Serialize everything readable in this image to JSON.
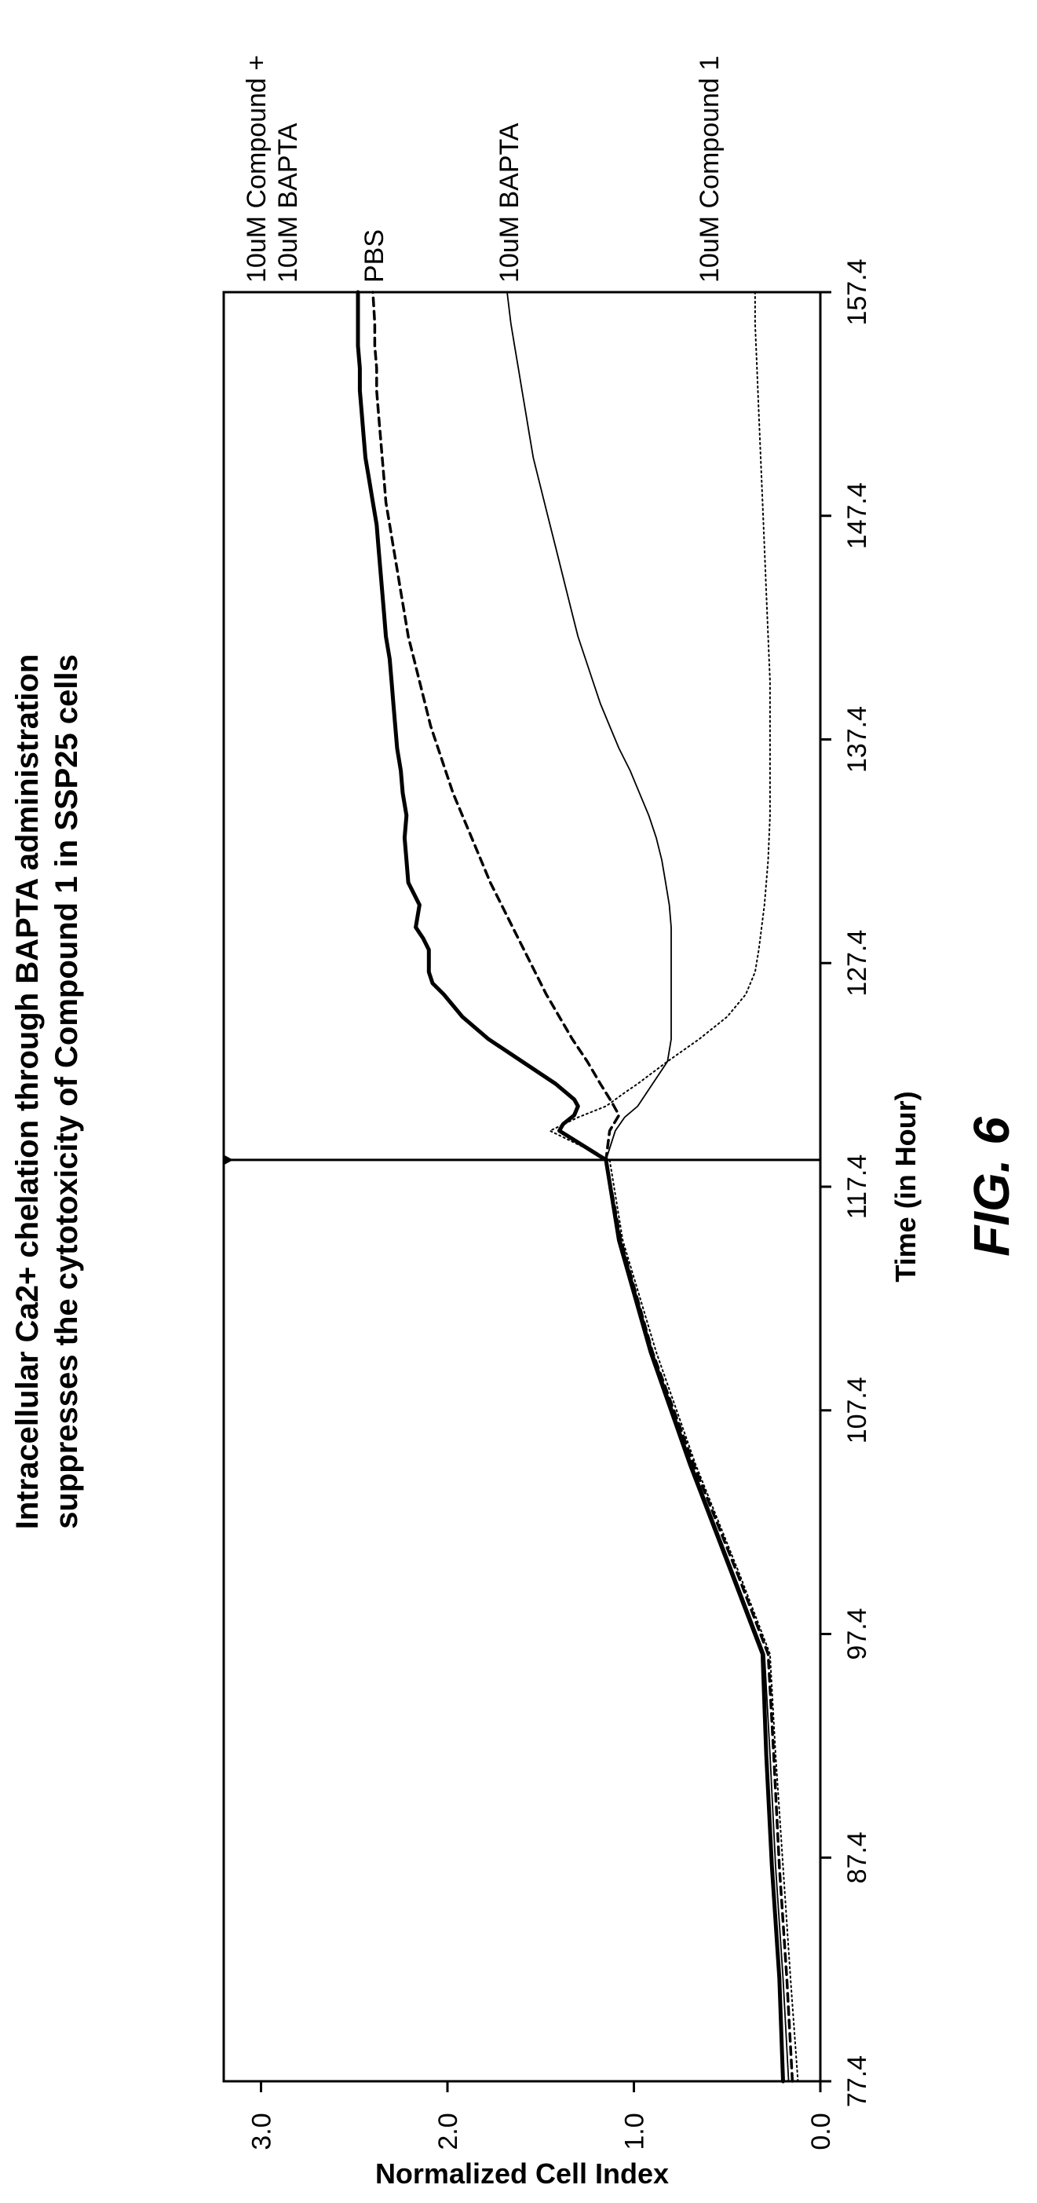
{
  "chart_data": {
    "type": "line",
    "title_lines": [
      "Intracellular Ca2+ chelation through BAPTA administration",
      "suppresses the cytotoxicity of Compound 1 in SSP25 cells"
    ],
    "xlabel": "Time (in Hour)",
    "ylabel": "Normalized Cell Index",
    "figure_label": "FIG.  6",
    "xlim": [
      77.4,
      157.4
    ],
    "ylim": [
      0.0,
      3.2
    ],
    "x_ticks": [
      "77.4",
      "87.4",
      "97.4",
      "107.4",
      "117.4",
      "127.4",
      "137.4",
      "147.4",
      "157.4"
    ],
    "y_ticks": [
      "0.0",
      "1.0",
      "2.0",
      "3.0"
    ],
    "marker_time": 118.6,
    "grid": false,
    "series": [
      {
        "name": "10uM Compound +\n10uM BAPTA",
        "style": "solid-thick",
        "color": "#000000",
        "x": [
          77.4,
          82,
          87,
          92,
          96.5,
          100,
          105,
          110,
          115,
          118.6,
          119.9,
          120.2,
          120.6,
          121,
          121.3,
          122,
          123,
          124,
          125,
          126,
          126.5,
          127,
          128,
          128.5,
          129,
          130,
          131,
          132,
          133,
          134,
          135,
          136,
          137,
          138,
          139,
          140,
          141,
          142,
          143,
          144,
          145,
          146,
          147,
          148,
          149,
          150,
          151,
          152,
          153,
          154,
          155,
          156,
          157.4
        ],
        "y": [
          0.2,
          0.22,
          0.26,
          0.29,
          0.31,
          0.47,
          0.7,
          0.91,
          1.08,
          1.15,
          1.4,
          1.38,
          1.32,
          1.3,
          1.32,
          1.42,
          1.6,
          1.78,
          1.92,
          2.02,
          2.08,
          2.1,
          2.1,
          2.13,
          2.17,
          2.15,
          2.21,
          2.22,
          2.23,
          2.22,
          2.24,
          2.25,
          2.27,
          2.28,
          2.29,
          2.3,
          2.31,
          2.33,
          2.34,
          2.35,
          2.36,
          2.37,
          2.38,
          2.4,
          2.42,
          2.44,
          2.45,
          2.46,
          2.47,
          2.47,
          2.48,
          2.48,
          2.48
        ]
      },
      {
        "name": "PBS",
        "style": "dashed",
        "color": "#000000",
        "x": [
          77.4,
          82,
          87,
          92,
          96.5,
          100,
          105,
          110,
          115,
          118.6,
          119.9,
          120.6,
          121.2,
          122,
          123,
          124,
          125,
          126,
          127,
          128,
          129,
          130,
          131,
          132,
          133,
          134,
          135,
          136,
          137,
          138,
          139,
          140,
          141,
          142,
          143,
          144,
          145,
          146,
          147,
          148,
          149,
          150,
          151,
          152,
          153,
          154,
          155,
          156,
          157.4
        ],
        "y": [
          0.15,
          0.18,
          0.22,
          0.25,
          0.28,
          0.44,
          0.68,
          0.9,
          1.07,
          1.15,
          1.13,
          1.08,
          1.12,
          1.18,
          1.25,
          1.33,
          1.4,
          1.47,
          1.53,
          1.59,
          1.65,
          1.71,
          1.77,
          1.82,
          1.87,
          1.92,
          1.97,
          2.01,
          2.05,
          2.09,
          2.12,
          2.15,
          2.18,
          2.21,
          2.23,
          2.25,
          2.27,
          2.29,
          2.31,
          2.33,
          2.34,
          2.35,
          2.36,
          2.37,
          2.38,
          2.38,
          2.39,
          2.39,
          2.4
        ]
      },
      {
        "name": "10uM BAPTA",
        "style": "solid-thin",
        "color": "#000000",
        "x": [
          77.4,
          82,
          87,
          92,
          96.5,
          100,
          105,
          110,
          115,
          118.6,
          119.9,
          120.5,
          121,
          122,
          123,
          124,
          125,
          126,
          127,
          128,
          129,
          130,
          131,
          132,
          133,
          134,
          135,
          136,
          137,
          138,
          139,
          140,
          141,
          142,
          143,
          144,
          145,
          146,
          147,
          148,
          149,
          150,
          151,
          152,
          153,
          154,
          155,
          156,
          157.4
        ],
        "y": [
          0.17,
          0.2,
          0.24,
          0.27,
          0.3,
          0.46,
          0.69,
          0.9,
          1.07,
          1.15,
          1.1,
          1.05,
          0.98,
          0.9,
          0.82,
          0.8,
          0.8,
          0.8,
          0.8,
          0.8,
          0.8,
          0.81,
          0.83,
          0.85,
          0.88,
          0.92,
          0.97,
          1.02,
          1.08,
          1.13,
          1.18,
          1.22,
          1.26,
          1.3,
          1.33,
          1.36,
          1.39,
          1.42,
          1.45,
          1.48,
          1.51,
          1.54,
          1.56,
          1.58,
          1.6,
          1.62,
          1.64,
          1.66,
          1.68
        ]
      },
      {
        "name": "10uM Compound 1",
        "style": "dotted",
        "color": "#000000",
        "x": [
          77.4,
          82,
          87,
          92,
          96.5,
          100,
          105,
          110,
          115,
          118.6,
          119.9,
          120.5,
          121,
          121.6,
          122,
          123,
          124,
          125,
          126,
          127,
          128,
          130,
          132,
          134,
          136,
          138,
          140,
          142,
          144,
          146,
          148,
          150,
          152,
          154,
          156,
          157.4
        ],
        "y": [
          0.12,
          0.16,
          0.2,
          0.24,
          0.27,
          0.43,
          0.67,
          0.88,
          1.06,
          1.13,
          1.45,
          1.3,
          1.15,
          1.05,
          0.98,
          0.82,
          0.65,
          0.5,
          0.4,
          0.35,
          0.33,
          0.3,
          0.28,
          0.27,
          0.27,
          0.27,
          0.27,
          0.28,
          0.29,
          0.3,
          0.31,
          0.32,
          0.33,
          0.34,
          0.35,
          0.35
        ]
      }
    ]
  }
}
